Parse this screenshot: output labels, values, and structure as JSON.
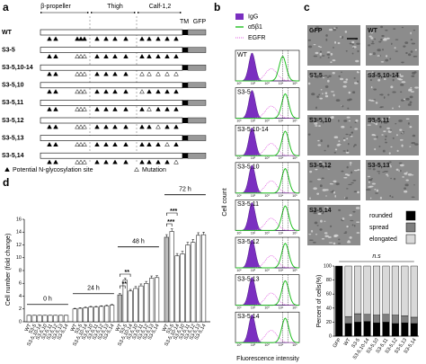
{
  "panel_labels": [
    "a",
    "b",
    "c",
    "d"
  ],
  "constructs": [
    "WT",
    "S3-5",
    "S3-5,10-14",
    "S3-5,10",
    "S3-5,11",
    "S3-5,12",
    "S3-5,13",
    "S3-5,14"
  ],
  "panel_a": {
    "domains": [
      "β-propeller",
      "Thigh",
      "Calf-1,2",
      "TM",
      "GFP"
    ],
    "legend": [
      "Potential N-glycosylation site",
      "Mutation"
    ]
  },
  "panel_b": {
    "legend": [
      "IgG",
      "α5β1",
      "EGFR"
    ],
    "legend_colors": [
      "#7a2fc0",
      "#22c022",
      "#e060e0"
    ],
    "xtick_labels": [
      "10¹",
      "10²",
      "10³",
      "10⁴",
      "10⁵"
    ],
    "xlabel": "Fluorescence intensity",
    "ylabel": "Cell count"
  },
  "panel_c": {
    "image_labels": [
      "GFP",
      "WT",
      "S3-5",
      "S3-5,10-14",
      "S3-5,10",
      "S3-5,11",
      "S3-5,12",
      "S3-5,13",
      "S3-5,14"
    ]
  },
  "chart_data": [
    {
      "type": "grouped_bar",
      "ylabel": "Cell number (fold change)",
      "color": "#ffffff",
      "categories": [
        "WT",
        "S3-5",
        "S3-5,10-14",
        "S3-5,10",
        "S3-5,11",
        "S3-5,12",
        "S3-5,13",
        "S3-5,14"
      ],
      "series": [
        {
          "name": "0 h",
          "values": [
            1,
            1,
            1,
            1,
            1,
            1,
            1,
            1
          ],
          "errors": [
            0.02,
            0.02,
            0.02,
            0.02,
            0.02,
            0.02,
            0.02,
            0.02
          ]
        },
        {
          "name": "24 h",
          "values": [
            2.0,
            2.1,
            2.2,
            2.3,
            2.3,
            2.4,
            2.5,
            2.6
          ],
          "errors": [
            0.1,
            0.1,
            0.1,
            0.1,
            0.1,
            0.1,
            0.1,
            0.1
          ]
        },
        {
          "name": "48 h",
          "values": [
            4.2,
            6.5,
            4.8,
            5.2,
            5.6,
            6.0,
            6.8,
            6.9
          ],
          "errors": [
            0.2,
            0.3,
            0.25,
            0.3,
            0.3,
            0.3,
            0.35,
            0.3
          ]
        },
        {
          "name": "72 h",
          "values": [
            13.2,
            14.1,
            10.3,
            10.6,
            12.0,
            12.4,
            13.5,
            13.6
          ],
          "errors": [
            0.4,
            0.4,
            0.35,
            0.4,
            0.4,
            0.45,
            0.4,
            0.4
          ]
        }
      ],
      "annotations": [
        "**",
        "**",
        "***",
        "***"
      ],
      "ylim": [
        0,
        16
      ],
      "yticks": [
        0,
        2,
        4,
        6,
        8,
        10,
        12,
        14,
        16
      ]
    },
    {
      "type": "stacked_bar",
      "ylabel": "Percent of cells(%)",
      "annotation": "n.s",
      "categories": [
        "GFP",
        "WT",
        "S3-5",
        "S3-5,10-14",
        "S3-5,10",
        "S3-5,11",
        "S3-5,12",
        "S3-5,13",
        "S3-5,14"
      ],
      "series": [
        {
          "name": "rounded",
          "color": "#000000",
          "values": [
            100,
            18,
            20,
            21,
            19,
            20,
            18,
            19,
            18
          ]
        },
        {
          "name": "spread",
          "color": "#7f7f7f",
          "values": [
            0,
            10,
            12,
            10,
            11,
            11,
            12,
            10,
            9
          ]
        },
        {
          "name": "elongated",
          "color": "#d9d9d9",
          "values": [
            0,
            72,
            68,
            69,
            70,
            69,
            70,
            71,
            73
          ]
        }
      ],
      "ylim": [
        0,
        100
      ],
      "yticks": [
        0,
        20,
        40,
        60,
        80,
        100
      ]
    }
  ]
}
